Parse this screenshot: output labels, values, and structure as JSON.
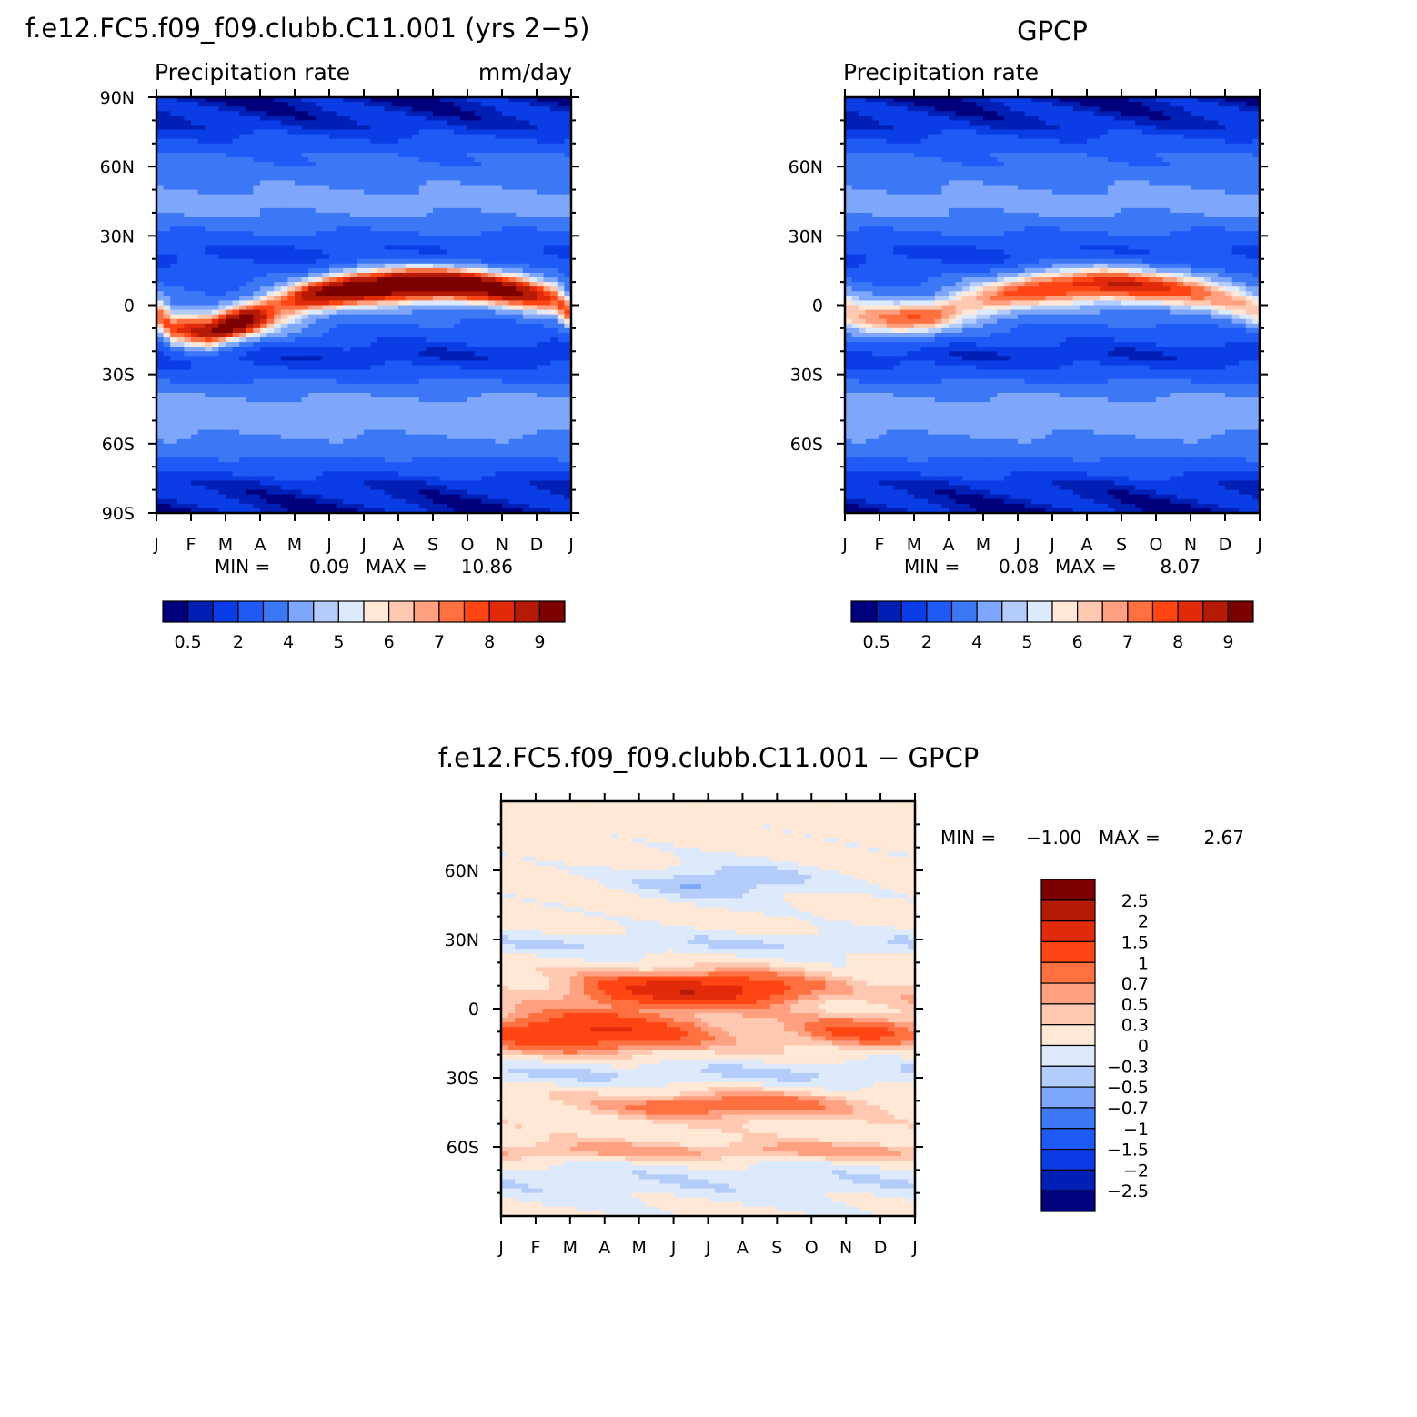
{
  "chart_data": [
    {
      "type": "heatmap",
      "panel": "model",
      "title": "f.e12.FC5.f09_f09.clubb.C11.001 (yrs 2−5)",
      "left_string": "Precipitation rate",
      "right_string": "mm/day",
      "x_ticks": [
        "J",
        "F",
        "M",
        "A",
        "M",
        "J",
        "J",
        "A",
        "S",
        "O",
        "N",
        "D",
        "J"
      ],
      "y_ticks": [
        "90N",
        "60N",
        "30N",
        "0",
        "30S",
        "60S",
        "90S"
      ],
      "ylim": [
        -90,
        90
      ],
      "min_label": "MIN =",
      "min_value": "0.09",
      "max_label": "MAX =",
      "max_value": "10.86",
      "colorbar_labels": [
        "0.5",
        "2",
        "4",
        "5",
        "6",
        "7",
        "8",
        "9"
      ],
      "itcz": [
        {
          "month": "Jan",
          "lat": -10,
          "peak": 6.5
        },
        {
          "month": "Feb",
          "lat": -12,
          "peak": 7.0
        },
        {
          "month": "Mar",
          "lat": -6,
          "peak": 7.8
        },
        {
          "month": "Apr",
          "lat": 0,
          "peak": 6.8
        },
        {
          "month": "May",
          "lat": 4,
          "peak": 8.8
        },
        {
          "month": "Jun",
          "lat": 7,
          "peak": 10.0
        },
        {
          "month": "Jul",
          "lat": 8,
          "peak": 10.5
        },
        {
          "month": "Aug",
          "lat": 9,
          "peak": 10.8
        },
        {
          "month": "Sep",
          "lat": 9,
          "peak": 10.4
        },
        {
          "month": "Oct",
          "lat": 8,
          "peak": 9.8
        },
        {
          "month": "Nov",
          "lat": 6,
          "peak": 9.0
        },
        {
          "month": "Dec",
          "lat": 3,
          "peak": 7.2
        }
      ]
    },
    {
      "type": "heatmap",
      "panel": "obs",
      "title": "GPCP",
      "left_string": "Precipitation rate",
      "x_ticks": [
        "J",
        "F",
        "M",
        "A",
        "M",
        "J",
        "J",
        "A",
        "S",
        "O",
        "N",
        "D",
        "J"
      ],
      "y_ticks": [
        "60N",
        "30N",
        "0",
        "30S",
        "60S"
      ],
      "ylim": [
        -90,
        90
      ],
      "min_label": "MIN =",
      "min_value": "0.08",
      "max_label": "MAX =",
      "max_value": "8.07",
      "colorbar_labels": [
        "0.5",
        "2",
        "4",
        "5",
        "6",
        "7",
        "8",
        "9"
      ],
      "itcz": [
        {
          "month": "Jan",
          "lat": -5,
          "peak": 5.6
        },
        {
          "month": "Feb",
          "lat": -6,
          "peak": 5.8
        },
        {
          "month": "Mar",
          "lat": -4,
          "peak": 5.6
        },
        {
          "month": "Apr",
          "lat": 1,
          "peak": 5.8
        },
        {
          "month": "May",
          "lat": 4,
          "peak": 6.6
        },
        {
          "month": "Jun",
          "lat": 7,
          "peak": 7.4
        },
        {
          "month": "Jul",
          "lat": 8,
          "peak": 7.8
        },
        {
          "month": "Aug",
          "lat": 9,
          "peak": 8.0
        },
        {
          "month": "Sep",
          "lat": 8,
          "peak": 7.9
        },
        {
          "month": "Oct",
          "lat": 7,
          "peak": 7.2
        },
        {
          "month": "Nov",
          "lat": 5,
          "peak": 6.5
        },
        {
          "month": "Dec",
          "lat": 1,
          "peak": 5.9
        }
      ]
    },
    {
      "type": "heatmap",
      "panel": "diff",
      "title": "f.e12.FC5.f09_f09.clubb.C11.001 − GPCP",
      "x_ticks": [
        "J",
        "F",
        "M",
        "A",
        "M",
        "J",
        "J",
        "A",
        "S",
        "O",
        "N",
        "D",
        "J"
      ],
      "y_ticks": [
        "60N",
        "30N",
        "0",
        "30S",
        "60S"
      ],
      "ylim": [
        -90,
        90
      ],
      "min_label": "MIN =",
      "min_value": "−1.00",
      "max_label": "MAX =",
      "max_value": "2.67",
      "colorbar_labels": [
        "2.5",
        "2",
        "1.5",
        "1",
        "0.7",
        "0.5",
        "0.3",
        "0",
        "−0.3",
        "−0.5",
        "−0.7",
        "−1",
        "−1.5",
        "−2",
        "−2.5"
      ]
    }
  ],
  "colors": {
    "precip_fill": [
      "#00007d",
      "#001fb4",
      "#0a3de6",
      "#1e5af5",
      "#3c78f5",
      "#7ea6fa",
      "#b4ccfa",
      "#dceafc",
      "#ffe8d5",
      "#ffc8b0",
      "#ffa080",
      "#ff7040",
      "#ff4514",
      "#e02a0a",
      "#b41a04",
      "#7d0000"
    ],
    "diff_fill": [
      "#00007d",
      "#001fb4",
      "#0a3de6",
      "#1e5af5",
      "#3c78f5",
      "#7ea6fa",
      "#b4ccfa",
      "#dceafc",
      "#ffe8d5",
      "#ffc8b0",
      "#ffa080",
      "#ff7040",
      "#ff4514",
      "#e02a0a",
      "#b41a04",
      "#7d0000"
    ]
  }
}
